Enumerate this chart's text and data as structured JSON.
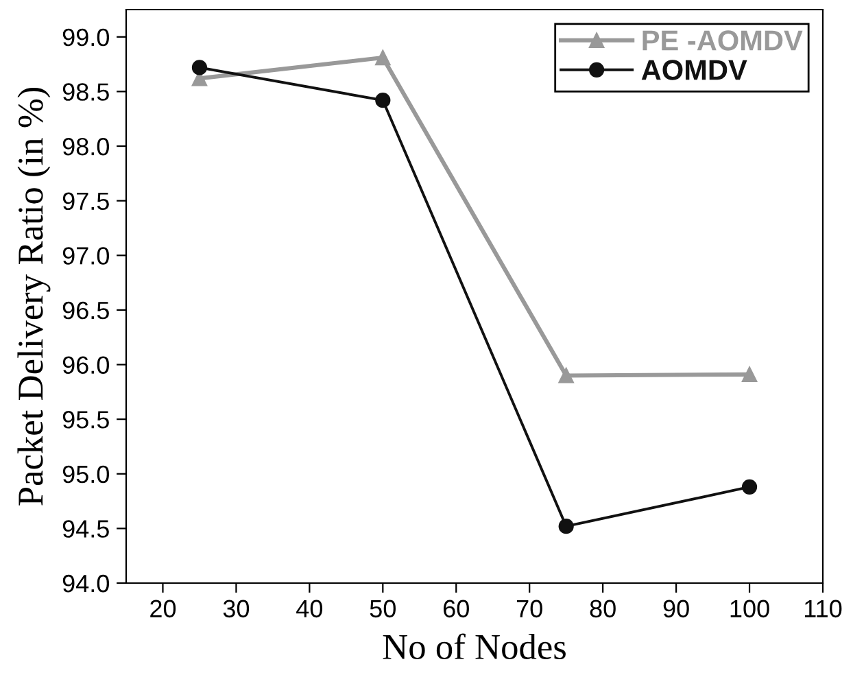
{
  "chart_data": {
    "type": "line",
    "xlabel": "No of Nodes",
    "ylabel": "Packet Delivery Ratio (in %)",
    "x": [
      25,
      50,
      75,
      100
    ],
    "series": [
      {
        "name": "PE -AOMDV",
        "color": "#999999",
        "marker": "triangle",
        "values": [
          98.62,
          98.81,
          95.9,
          95.91
        ]
      },
      {
        "name": "AOMDV",
        "color": "#111111",
        "marker": "circle",
        "values": [
          98.72,
          98.42,
          94.52,
          94.88
        ]
      }
    ],
    "xlim": [
      15,
      110
    ],
    "xticks": [
      20,
      30,
      40,
      50,
      60,
      70,
      80,
      90,
      100,
      110
    ],
    "ylim": [
      94.0,
      99.25
    ],
    "yticks": [
      {
        "value": 94.0,
        "label": "94.0"
      },
      {
        "value": 94.5,
        "label": "94.5"
      },
      {
        "value": 95.0,
        "label": "95.0"
      },
      {
        "value": 95.5,
        "label": "95.5"
      },
      {
        "value": 96.0,
        "label": "96.0"
      },
      {
        "value": 96.5,
        "label": "96.5"
      },
      {
        "value": 97.0,
        "label": "97.0"
      },
      {
        "value": 97.5,
        "label": "97.5"
      },
      {
        "value": 98.0,
        "label": "98.0"
      },
      {
        "value": 98.5,
        "label": "98.5"
      },
      {
        "value": 99.0,
        "label": "99.0"
      }
    ],
    "grid": false,
    "legend": "top right",
    "line_style": "solid"
  }
}
